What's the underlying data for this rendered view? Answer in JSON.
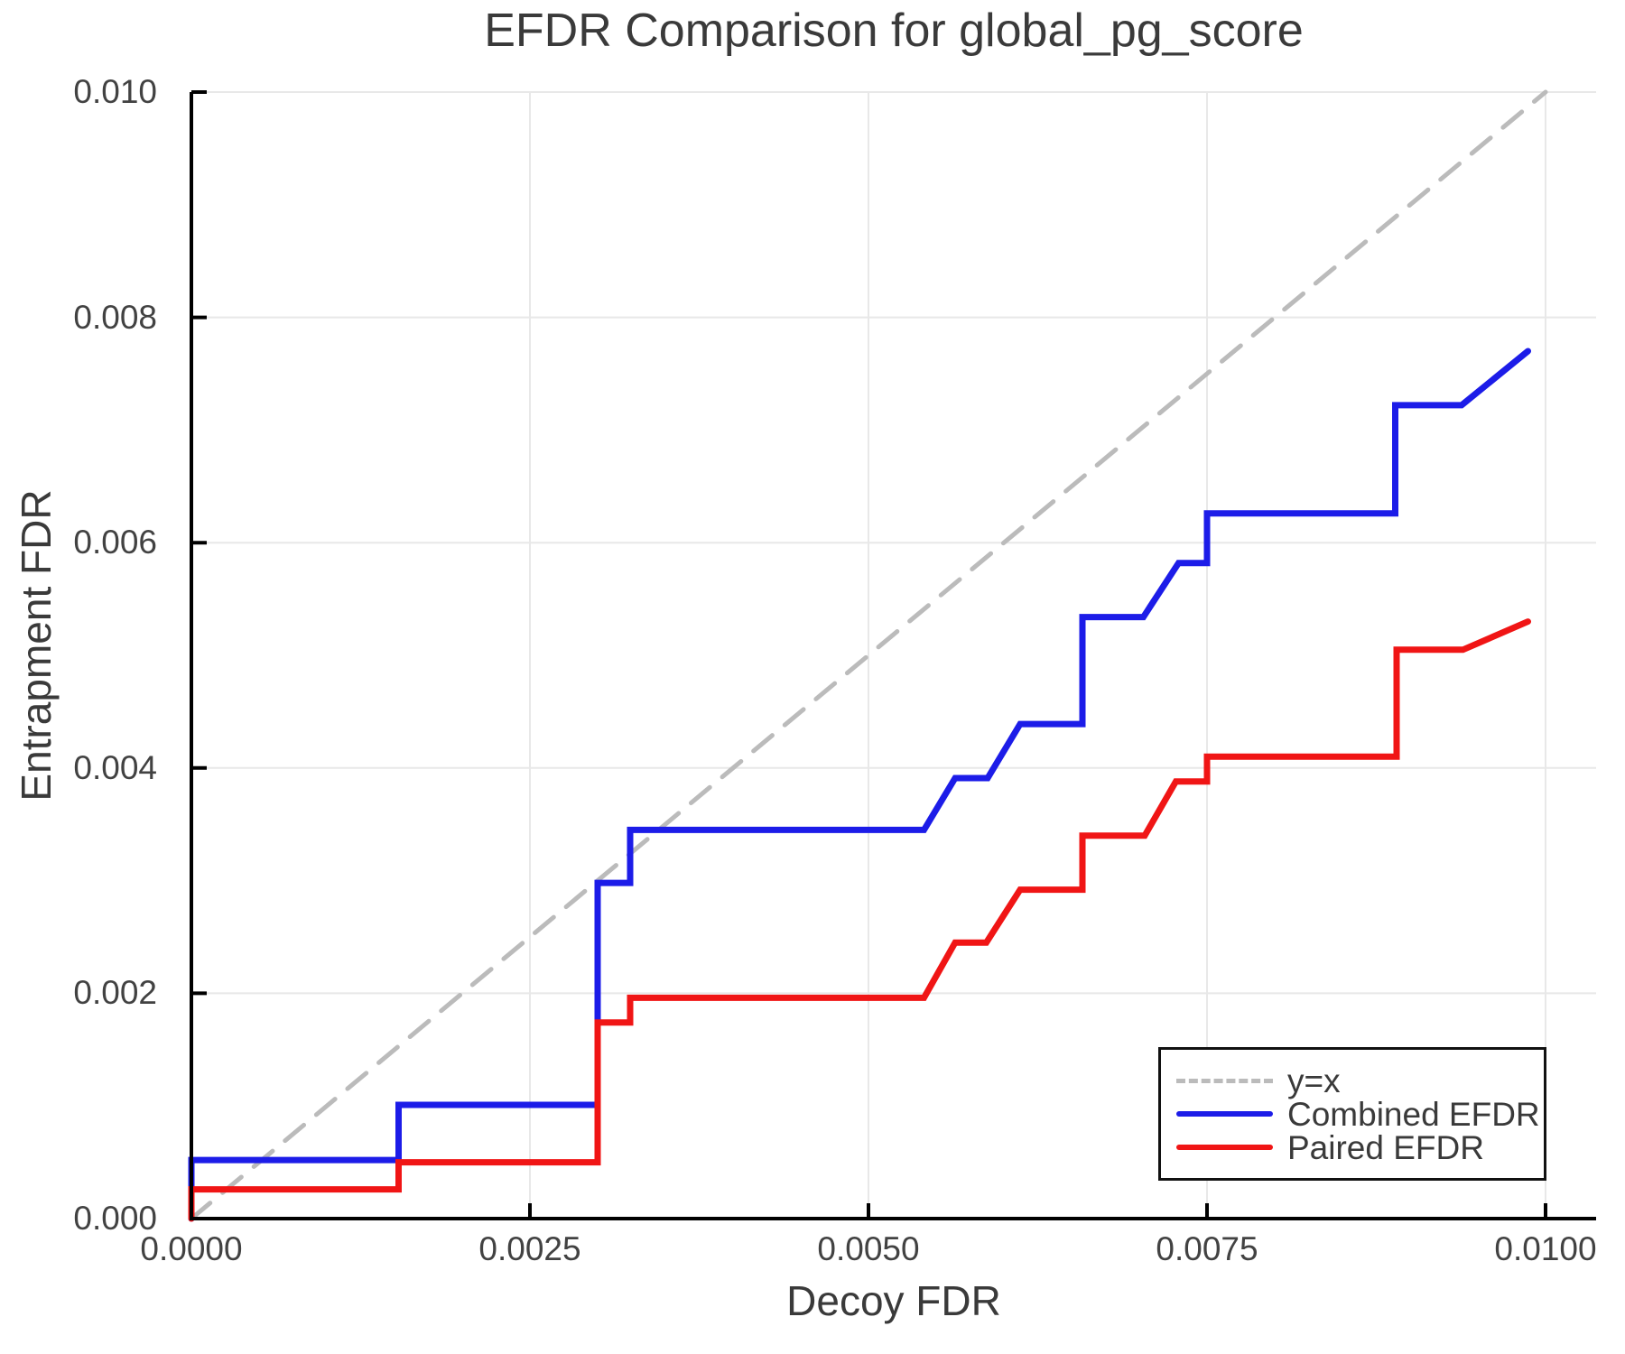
{
  "chart": {
    "title": "EFDR Comparison for global_pg_score",
    "xlabel": "Decoy FDR",
    "ylabel": "Entrapment FDR"
  },
  "chart_data": {
    "type": "line",
    "title": "EFDR Comparison for global_pg_score",
    "xlabel": "Decoy FDR",
    "ylabel": "Entrapment FDR",
    "xlim": [
      0,
      0.010373
    ],
    "ylim": [
      0,
      0.01
    ],
    "grid": true,
    "legend_position": "lower right",
    "x_ticks": {
      "values": [
        0,
        0.0025,
        0.005,
        0.0075,
        0.01
      ],
      "labels": [
        "0.0000",
        "0.0025",
        "0.0050",
        "0.0075",
        "0.0100"
      ]
    },
    "y_ticks": {
      "values": [
        0,
        0.002,
        0.004,
        0.006,
        0.008,
        0.01
      ],
      "labels": [
        "0.000",
        "0.002",
        "0.004",
        "0.006",
        "0.008",
        "0.010"
      ]
    },
    "colors": {
      "identity": "#bbbbbb",
      "combined": "#1c1ce8",
      "paired": "#f01515",
      "grid": "#e8e8e8",
      "axis": "#000000",
      "text": "#3a3a3a"
    },
    "series": [
      {
        "name": "y=x",
        "style": "dashed",
        "color": "#bbbbbb",
        "points": [
          [
            0,
            0
          ],
          [
            0.01,
            0.01
          ]
        ]
      },
      {
        "name": "Combined EFDR",
        "style": "solid",
        "color": "#1c1ce8",
        "points": [
          [
            0,
            0
          ],
          [
            0,
            0.00052
          ],
          [
            0.00153,
            0.00052
          ],
          [
            0.00153,
            0.00101
          ],
          [
            0.003,
            0.00101
          ],
          [
            0.003,
            0.00298
          ],
          [
            0.00324,
            0.00298
          ],
          [
            0.00324,
            0.00345
          ],
          [
            0.00541,
            0.00345
          ],
          [
            0.00564,
            0.00391
          ],
          [
            0.00588,
            0.00391
          ],
          [
            0.00612,
            0.00439
          ],
          [
            0.00658,
            0.00439
          ],
          [
            0.00658,
            0.00534
          ],
          [
            0.00703,
            0.00534
          ],
          [
            0.00729,
            0.00582
          ],
          [
            0.0075,
            0.00582
          ],
          [
            0.0075,
            0.00626
          ],
          [
            0.00889,
            0.00626
          ],
          [
            0.00889,
            0.00722
          ],
          [
            0.00938,
            0.00722
          ],
          [
            0.00987,
            0.0077
          ]
        ]
      },
      {
        "name": "Paired EFDR",
        "style": "solid",
        "color": "#f01515",
        "points": [
          [
            0,
            0
          ],
          [
            0,
            0.00026
          ],
          [
            0.00153,
            0.00026
          ],
          [
            0.00153,
            0.0005
          ],
          [
            0.003,
            0.0005
          ],
          [
            0.003,
            0.00174
          ],
          [
            0.00324,
            0.00174
          ],
          [
            0.00324,
            0.00196
          ],
          [
            0.00541,
            0.00196
          ],
          [
            0.00564,
            0.00245
          ],
          [
            0.00587,
            0.00245
          ],
          [
            0.00612,
            0.00292
          ],
          [
            0.00658,
            0.00292
          ],
          [
            0.00658,
            0.0034
          ],
          [
            0.00704,
            0.0034
          ],
          [
            0.00727,
            0.00388
          ],
          [
            0.0075,
            0.00388
          ],
          [
            0.0075,
            0.0041
          ],
          [
            0.0089,
            0.0041
          ],
          [
            0.0089,
            0.00505
          ],
          [
            0.00939,
            0.00505
          ],
          [
            0.00987,
            0.0053
          ]
        ]
      }
    ]
  }
}
